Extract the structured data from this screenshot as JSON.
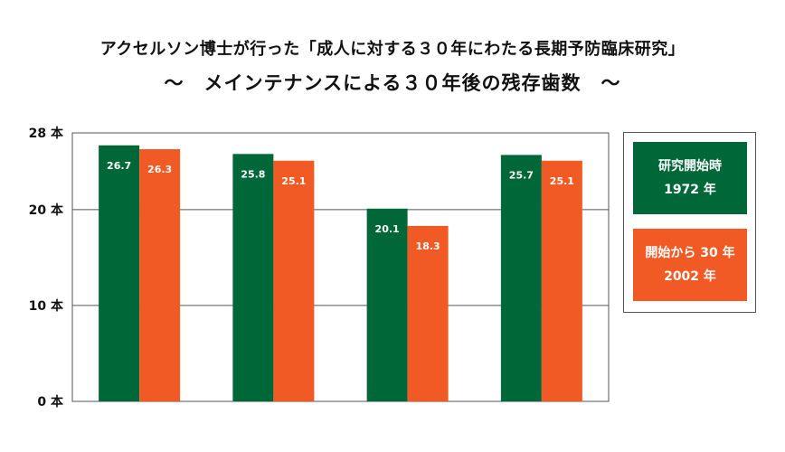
{
  "title_line1": "アクセルソン博士が行った「成人に対する３０年にわたる長期予防臨床研究」",
  "title_line2": "～　メインテナンスによる３０年後の残存歯数　～",
  "legend": [
    {
      "line1": "研究開始時",
      "line2": "1972 年",
      "color": "#006838"
    },
    {
      "line1": "開始から 30 年",
      "line2": "2002 年",
      "color": "#f15a24"
    }
  ],
  "chart_data": {
    "type": "bar",
    "categories": [
      "",
      "",
      "",
      ""
    ],
    "series": [
      {
        "name": "研究開始時 1972 年",
        "values": [
          26.7,
          25.8,
          20.1,
          25.7
        ],
        "color": "#006838"
      },
      {
        "name": "開始から 30 年 2002 年",
        "values": [
          26.3,
          25.1,
          18.3,
          25.1
        ],
        "color": "#f15a24"
      }
    ],
    "data_labels": [
      [
        "26.7",
        "25.8",
        "20.1",
        "25.7"
      ],
      [
        "26.3",
        "25.1",
        "18.3",
        "25.1"
      ]
    ],
    "yticks": [
      0,
      10,
      20,
      28
    ],
    "ytick_labels": [
      "0 本",
      "10 本",
      "20 本",
      "28 本"
    ],
    "ylim": [
      0,
      28
    ],
    "xlabel": "",
    "ylabel": "",
    "grid": true,
    "legend_position": "right"
  }
}
